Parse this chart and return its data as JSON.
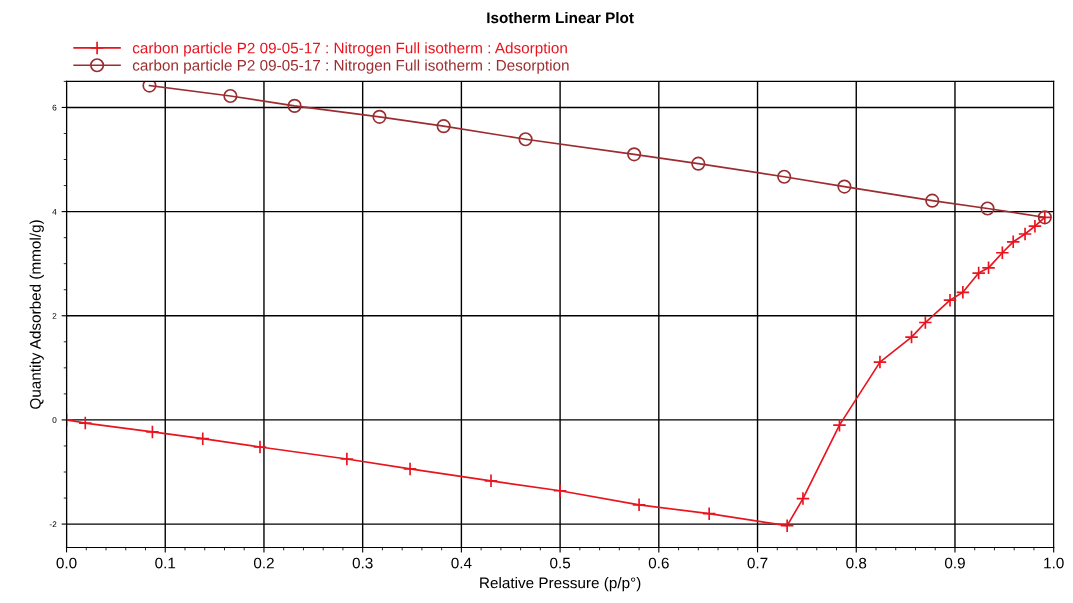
{
  "chart_data": {
    "type": "line",
    "title": "Isotherm Linear Plot",
    "xlabel": "Relative Pressure (p/p°)",
    "ylabel": "Quantity Adsorbed (mmol/g)",
    "xlim": [
      0,
      1
    ],
    "ylim": [
      -2.45,
      6.5
    ],
    "xticks": [
      {
        "value": 0,
        "label": "0.0"
      },
      0.1,
      0.2,
      0.3,
      0.4,
      0.5,
      0.6,
      0.7,
      0.8,
      0.9,
      {
        "value": 1,
        "label": "1.0"
      }
    ],
    "yticks": [
      -2,
      0,
      2,
      4,
      6
    ],
    "grid": true,
    "legend": "top left",
    "series": [
      {
        "name": "carbon particle P2 09-05-17 : Nitrogen Full isotherm : Adsorption",
        "color": "#e8141e",
        "marker": "cross",
        "x": [
          0,
          0.019,
          0.087,
          0.138,
          0.196,
          0.284,
          0.348,
          0.43,
          0.5,
          0.58,
          0.651,
          0.73,
          0.746,
          0.783,
          0.824,
          0.856,
          0.87,
          0.895,
          0.908,
          0.924,
          0.934,
          0.948,
          0.959,
          0.971,
          0.981,
          0.991
        ],
        "values": [
          0,
          -0.06,
          -0.23,
          -0.36,
          -0.52,
          -0.75,
          -0.94,
          -1.17,
          -1.36,
          -1.63,
          -1.8,
          -2.03,
          -1.51,
          -0.1,
          1.11,
          1.59,
          1.87,
          2.3,
          2.45,
          2.82,
          2.92,
          3.21,
          3.42,
          3.57,
          3.72,
          3.89
        ]
      },
      {
        "name": "carbon particle P2 09-05-17 : Nitrogen Full isotherm : Desorption",
        "color": "#9b2d30",
        "marker": "circle",
        "x": [
          0.084,
          0.166,
          0.231,
          0.317,
          0.382,
          0.465,
          0.575,
          0.64,
          0.727,
          0.788,
          0.877,
          0.933,
          0.991
        ],
        "values": [
          6.42,
          6.22,
          6.03,
          5.82,
          5.64,
          5.39,
          5.1,
          4.92,
          4.67,
          4.48,
          4.21,
          4.06,
          3.89
        ]
      }
    ]
  }
}
